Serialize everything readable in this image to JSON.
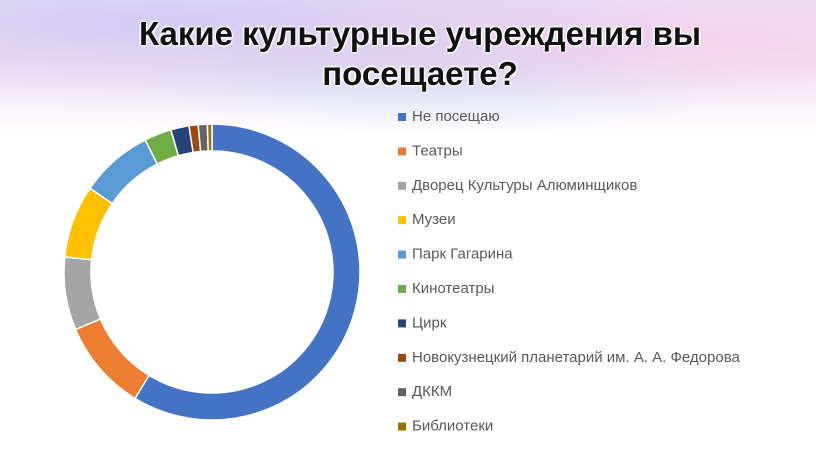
{
  "chart_data": {
    "type": "donut",
    "title": "Какие культурные учреждения вы посещаете?",
    "categories": [
      "Не посещаю",
      "Театры",
      "Дворец Культуры Алюминщиков",
      "Музеи",
      "Парк Гагарина",
      "Кинотеатры",
      "Цирк",
      "Новокузнецкий планетарий им. А. А. Федорова",
      "ДККМ",
      "Библиотеки"
    ],
    "values": [
      59,
      10,
      8,
      8,
      8,
      3,
      2,
      1,
      1,
      0.5
    ],
    "colors": [
      "#4472c4",
      "#ed7d31",
      "#a5a5a5",
      "#ffc000",
      "#5b9bd5",
      "#70ad47",
      "#264478",
      "#9e480e",
      "#636363",
      "#997300"
    ],
    "legend": "right"
  }
}
